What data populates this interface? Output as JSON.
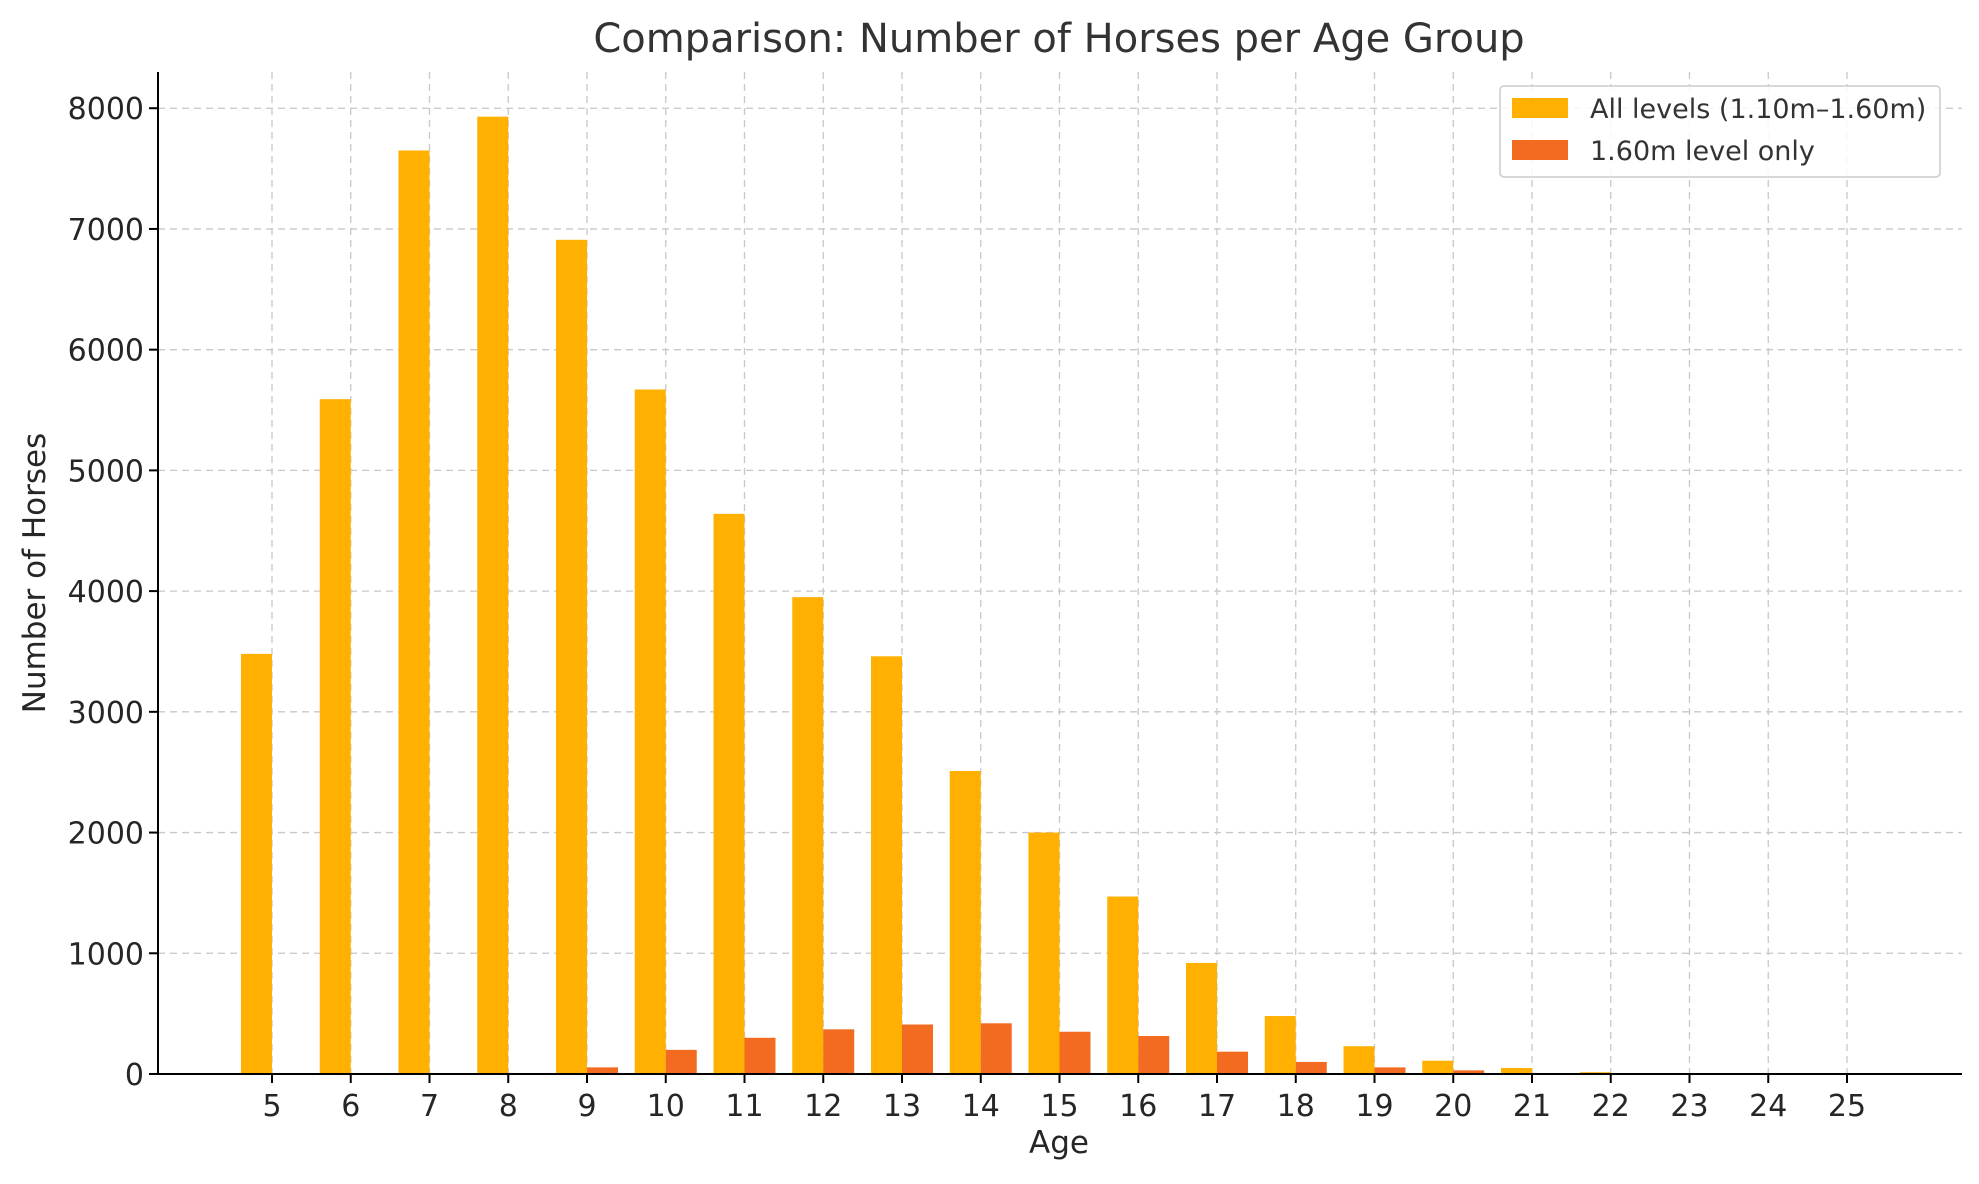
{
  "chart_data": {
    "type": "bar",
    "title": "Comparison: Number of Horses per Age Group",
    "xlabel": "Age",
    "ylabel": "Number of Horses",
    "categories": [
      "5",
      "6",
      "7",
      "8",
      "9",
      "10",
      "11",
      "12",
      "13",
      "14",
      "15",
      "16",
      "17",
      "18",
      "19",
      "20",
      "21",
      "22",
      "23",
      "24",
      "25"
    ],
    "ylim": [
      0,
      8300
    ],
    "yticks": [
      0,
      1000,
      2000,
      3000,
      4000,
      5000,
      6000,
      7000,
      8000
    ],
    "grid": true,
    "legend_position": "top-right",
    "series": [
      {
        "name": "All levels (1.10m–1.60m)",
        "color": "#FFB000",
        "values": [
          3480,
          5590,
          7650,
          7930,
          6910,
          5670,
          4640,
          3950,
          3460,
          2510,
          2000,
          1470,
          920,
          480,
          230,
          110,
          50,
          15,
          0,
          0,
          0
        ]
      },
      {
        "name": "1.60m level only",
        "color": "#F26B21",
        "values": [
          0,
          0,
          0,
          0,
          55,
          200,
          300,
          370,
          410,
          420,
          350,
          315,
          185,
          100,
          55,
          30,
          8,
          2,
          0,
          0,
          0
        ]
      }
    ]
  }
}
